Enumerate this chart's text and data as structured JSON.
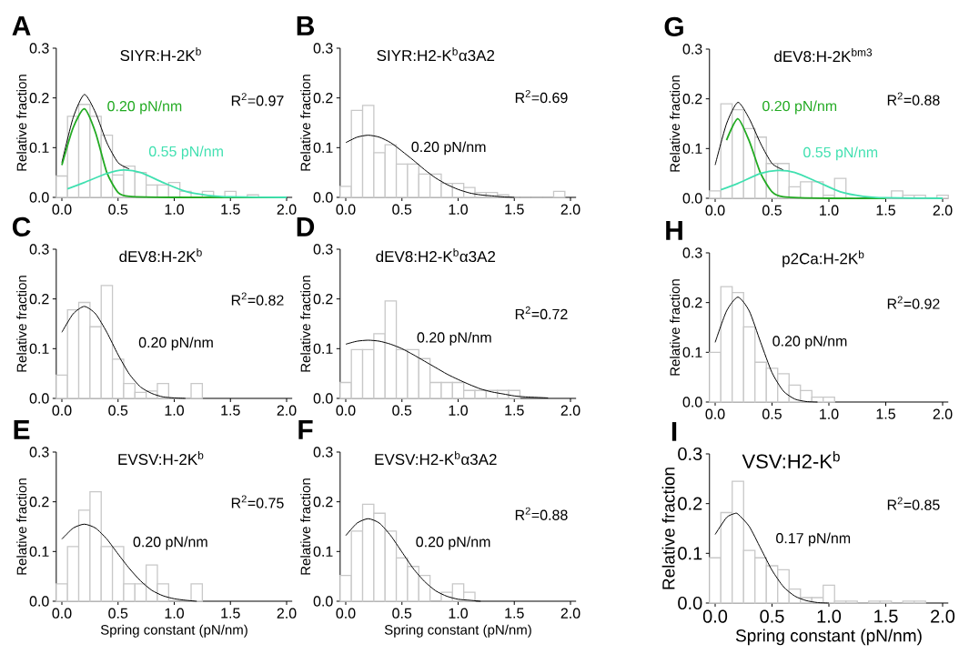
{
  "chart_data": [
    {
      "type": "histogram",
      "title": "SIYR:H-2K$^{b}$",
      "ylabel": "Relative fraction",
      "annotations": [
        "A",
        "R$^{2}$=0.97"
      ],
      "color": "#c8c8c8",
      "bins": [
        -0.05,
        0.05,
        0.15,
        0.25,
        0.35,
        0.45,
        0.55,
        0.65,
        0.75,
        0.85,
        0.95,
        1.05,
        1.15,
        1.25,
        1.35,
        1.45,
        1.55,
        1.65,
        1.75
      ],
      "values": [
        0.043,
        0.163,
        0.187,
        0.163,
        0.125,
        0.045,
        0.063,
        0.05,
        0.025,
        0.025,
        0.03,
        0.012,
        0,
        0.012,
        0,
        0.012,
        null,
        0.005
      ],
      "series": [
        {
          "type": "line",
          "color": "#000000",
          "x": [
            0,
            0.1,
            0.2,
            0.3,
            0.4,
            0.5,
            0.6
          ],
          "values": [
            0.07,
            0.16,
            0.207,
            0.17,
            0.11,
            0.07,
            0.057
          ]
        },
        {
          "type": "line",
          "name": "0.20 pN/nm",
          "color": "#22aa22",
          "x": [
            0,
            0.1,
            0.2,
            0.3,
            0.4,
            0.5,
            0.6,
            1.0,
            2.0
          ],
          "values": [
            0.065,
            0.14,
            0.178,
            0.13,
            0.05,
            0.01,
            0.002,
            0,
            0
          ]
        },
        {
          "type": "line",
          "name": "0.55 pN/nm",
          "color": "#40e0b0",
          "x": [
            0.05,
            0.2,
            0.4,
            0.55,
            0.7,
            0.9,
            1.1,
            1.3,
            1.5,
            2.0
          ],
          "values": [
            0.017,
            0.03,
            0.048,
            0.055,
            0.05,
            0.03,
            0.012,
            0.004,
            0.001,
            0
          ]
        }
      ],
      "xlim": [
        -0.05,
        2.05
      ],
      "ylim": [
        0,
        0.3
      ],
      "xticks": [
        {
          "value": 0,
          "label": "0.0"
        },
        {
          "value": 0.5,
          "label": "0.5"
        },
        {
          "value": 1,
          "label": "1.0"
        },
        {
          "value": 1.5,
          "label": "1.5"
        },
        {
          "value": 2,
          "label": "2.0"
        }
      ],
      "yticks": [
        {
          "value": 0,
          "label": "0.0"
        },
        {
          "value": 0.1,
          "label": "0.1"
        },
        {
          "value": 0.2,
          "label": "0.2"
        },
        {
          "value": 0.3,
          "label": "0.3"
        }
      ]
    },
    {
      "type": "histogram",
      "title": "SIYR:H2-K$^{b}$α3A2",
      "ylabel": "Relative fraction",
      "annotations": [
        "B",
        "R$^{2}$=0.69"
      ],
      "color": "#c8c8c8",
      "bins": [
        -0.05,
        0.05,
        0.15,
        0.25,
        0.35,
        0.45,
        0.55,
        0.65,
        0.75,
        0.85,
        0.95,
        1.05,
        1.15,
        1.25,
        1.35,
        1.45,
        1.55,
        1.65,
        1.75,
        1.85,
        1.95
      ],
      "values": [
        0.022,
        0.175,
        0.185,
        0.09,
        0.106,
        0.067,
        0.067,
        0.047,
        0.047,
        0.028,
        0.028,
        0.02,
        0.01,
        0.01,
        0.005,
        0,
        0,
        0,
        0,
        0.012
      ],
      "series": [
        {
          "type": "line",
          "name": "0.20 pN/nm",
          "color": "#000000",
          "x": [
            0,
            0.1,
            0.2,
            0.3,
            0.4,
            0.5,
            0.6,
            0.7,
            0.8,
            0.9,
            1.0,
            1.1,
            1.2,
            1.3,
            1.4,
            1.5
          ],
          "values": [
            0.11,
            0.121,
            0.125,
            0.121,
            0.11,
            0.093,
            0.075,
            0.056,
            0.039,
            0.026,
            0.016,
            0.009,
            0.005,
            0.003,
            0.001,
            0
          ]
        }
      ],
      "xlim": [
        -0.05,
        2.05
      ],
      "ylim": [
        0,
        0.3
      ],
      "xticks": [
        {
          "value": 0,
          "label": "0.0"
        },
        {
          "value": 0.5,
          "label": "0.5"
        },
        {
          "value": 1,
          "label": "1.0"
        },
        {
          "value": 1.5,
          "label": "1.5"
        },
        {
          "value": 2,
          "label": "2.0"
        }
      ],
      "yticks": [
        {
          "value": 0,
          "label": "0.0"
        },
        {
          "value": 0.1,
          "label": "0.1"
        },
        {
          "value": 0.2,
          "label": "0.2"
        },
        {
          "value": 0.3,
          "label": "0.3"
        }
      ]
    },
    {
      "type": "histogram",
      "title": "dEV8:H-2K$^{bm3}$",
      "ylabel": "Relative fraction",
      "annotations": [
        "G",
        "R$^{2}$=0.88"
      ],
      "color": "#c8c8c8",
      "bins": [
        -0.05,
        0.05,
        0.15,
        0.25,
        0.35,
        0.45,
        0.55,
        0.65,
        0.75,
        0.85,
        0.95,
        1.05,
        1.15,
        1.25,
        1.35,
        1.45,
        1.55,
        1.65,
        1.75,
        1.85,
        1.95,
        2.05
      ],
      "values": [
        0.015,
        0.19,
        0.178,
        0.14,
        0.123,
        0.07,
        0.07,
        0.023,
        0.033,
        0.033,
        0.006,
        0.04,
        0,
        null,
        null,
        0,
        0.015,
        0.006,
        0.006,
        0,
        0.006
      ],
      "series": [
        {
          "type": "line",
          "color": "#000000",
          "x": [
            0,
            0.1,
            0.2,
            0.3,
            0.4,
            0.5,
            0.6
          ],
          "values": [
            0.067,
            0.15,
            0.193,
            0.16,
            0.11,
            0.07,
            0.057
          ]
        },
        {
          "type": "line",
          "name": "0.20 pN/nm",
          "color": "#22aa22",
          "x": [
            0.1,
            0.2,
            0.3,
            0.4,
            0.5,
            0.6,
            1.0,
            1.5
          ],
          "values": [
            0.117,
            0.16,
            0.115,
            0.05,
            0.013,
            0.003,
            0,
            0
          ]
        },
        {
          "type": "line",
          "name": "0.55 pN/nm",
          "color": "#40e0b0",
          "x": [
            0.05,
            0.2,
            0.4,
            0.55,
            0.7,
            0.9,
            1.1,
            1.3,
            1.5,
            2.0
          ],
          "values": [
            0.017,
            0.03,
            0.05,
            0.056,
            0.052,
            0.033,
            0.013,
            0.004,
            0.001,
            0
          ]
        }
      ],
      "xlim": [
        -0.05,
        2.05
      ],
      "ylim": [
        0,
        0.3
      ],
      "xticks": [
        {
          "value": 0,
          "label": "0.0"
        },
        {
          "value": 0.5,
          "label": "0.5"
        },
        {
          "value": 1,
          "label": "1.0"
        },
        {
          "value": 1.5,
          "label": "1.5"
        },
        {
          "value": 2,
          "label": "2.0"
        }
      ],
      "yticks": [
        {
          "value": 0,
          "label": "0.0"
        },
        {
          "value": 0.1,
          "label": "0.1"
        },
        {
          "value": 0.2,
          "label": "0.2"
        },
        {
          "value": 0.3,
          "label": "0.3"
        }
      ]
    },
    {
      "type": "histogram",
      "title": "dEV8:H-2K$^{b}$",
      "ylabel": "Relative fraction",
      "annotations": [
        "C",
        "R$^{2}$=0.82"
      ],
      "color": "#c8c8c8",
      "bins": [
        -0.05,
        0.05,
        0.15,
        0.25,
        0.35,
        0.45,
        0.55,
        0.65,
        0.75,
        0.85,
        0.95,
        1.05,
        1.15,
        1.25
      ],
      "values": [
        0.047,
        0.178,
        0.193,
        0.144,
        0.227,
        0.079,
        0.03,
        0.012,
        0.015,
        0.03,
        0,
        0,
        0.03
      ],
      "series": [
        {
          "type": "line",
          "name": "0.20 pN/nm",
          "color": "#000000",
          "x": [
            0,
            0.1,
            0.2,
            0.3,
            0.4,
            0.5,
            0.6,
            0.7,
            0.8,
            0.9,
            1.0,
            1.1
          ],
          "values": [
            0.133,
            0.17,
            0.185,
            0.17,
            0.133,
            0.088,
            0.049,
            0.023,
            0.01,
            0.003,
            0.001,
            0
          ]
        }
      ],
      "xlim": [
        -0.05,
        2.05
      ],
      "ylim": [
        0,
        0.3
      ],
      "xticks": [
        {
          "value": 0,
          "label": "0.0"
        },
        {
          "value": 0.5,
          "label": "0.5"
        },
        {
          "value": 1,
          "label": "1.0"
        },
        {
          "value": 1.5,
          "label": "1.5"
        },
        {
          "value": 2,
          "label": "2.0"
        }
      ],
      "yticks": [
        {
          "value": 0,
          "label": "0.0"
        },
        {
          "value": 0.1,
          "label": "0.1"
        },
        {
          "value": 0.2,
          "label": "0.2"
        },
        {
          "value": 0.3,
          "label": "0.3"
        }
      ]
    },
    {
      "type": "histogram",
      "title": "dEV8:H2-K$^{b}$α3A2",
      "ylabel": "Relative fraction",
      "annotations": [
        "D",
        "R$^{2}$=0.72"
      ],
      "color": "#c8c8c8",
      "bins": [
        -0.05,
        0.05,
        0.15,
        0.25,
        0.35,
        0.45,
        0.55,
        0.65,
        0.75,
        0.85,
        0.95,
        1.05,
        1.15,
        1.25,
        1.35,
        1.45,
        1.55
      ],
      "values": [
        0.032,
        0.098,
        0.098,
        0.13,
        0.196,
        0.098,
        0.098,
        0.08,
        0.032,
        0.032,
        0.032,
        0.016,
        0.016,
        0.016,
        0.016,
        0.016
      ],
      "series": [
        {
          "type": "line",
          "name": "0.20 pN/nm",
          "color": "#000000",
          "x": [
            0,
            0.1,
            0.2,
            0.3,
            0.4,
            0.5,
            0.6,
            0.7,
            0.8,
            0.9,
            1.0,
            1.1,
            1.2,
            1.3,
            1.4,
            1.5,
            1.6,
            1.7,
            1.8
          ],
          "values": [
            0.109,
            0.115,
            0.117,
            0.115,
            0.109,
            0.1,
            0.088,
            0.075,
            0.062,
            0.049,
            0.038,
            0.028,
            0.019,
            0.013,
            0.009,
            0.005,
            0.003,
            0.002,
            0.001
          ]
        }
      ],
      "xlim": [
        -0.05,
        2.05
      ],
      "ylim": [
        0,
        0.3
      ],
      "xticks": [
        {
          "value": 0,
          "label": "0.0"
        },
        {
          "value": 0.5,
          "label": "0.5"
        },
        {
          "value": 1,
          "label": "1.0"
        },
        {
          "value": 1.5,
          "label": "1.5"
        },
        {
          "value": 2,
          "label": "2.0"
        }
      ],
      "yticks": [
        {
          "value": 0,
          "label": "0.0"
        },
        {
          "value": 0.1,
          "label": "0.1"
        },
        {
          "value": 0.2,
          "label": "0.2"
        },
        {
          "value": 0.3,
          "label": "0.3"
        }
      ]
    },
    {
      "type": "histogram",
      "title": "p2Ca:H-2K$^{b}$",
      "ylabel": "Relative fraction",
      "annotations": [
        "H",
        "R$^{2}$=0.92"
      ],
      "color": "#c8c8c8",
      "bins": [
        -0.05,
        0.05,
        0.15,
        0.25,
        0.35,
        0.45,
        0.55,
        0.65,
        0.75,
        0.85,
        0.95,
        1.05
      ],
      "values": [
        0.1,
        0.232,
        0.22,
        0.151,
        0.08,
        0.068,
        0.057,
        0.034,
        0.023,
        0.01,
        0.01
      ],
      "series": [
        {
          "type": "line",
          "name": "0.20 pN/nm",
          "color": "#000000",
          "x": [
            0,
            0.1,
            0.2,
            0.3,
            0.4,
            0.5,
            0.6,
            0.7,
            0.8,
            0.9
          ],
          "values": [
            0.12,
            0.183,
            0.211,
            0.183,
            0.12,
            0.059,
            0.022,
            0.006,
            0.001,
            0
          ]
        }
      ],
      "xlim": [
        -0.05,
        2.05
      ],
      "ylim": [
        0,
        0.3
      ],
      "xticks": [
        {
          "value": 0,
          "label": "0.0"
        },
        {
          "value": 0.5,
          "label": "0.5"
        },
        {
          "value": 1,
          "label": "1.0"
        },
        {
          "value": 1.5,
          "label": "1.5"
        },
        {
          "value": 2,
          "label": "2.0"
        }
      ],
      "yticks": [
        {
          "value": 0,
          "label": "0.0"
        },
        {
          "value": 0.1,
          "label": "0.1"
        },
        {
          "value": 0.2,
          "label": "0.2"
        },
        {
          "value": 0.3,
          "label": "0.3"
        }
      ]
    },
    {
      "type": "histogram",
      "title": "EVSV:H-2K$^{b}$",
      "xlabel": "Spring constant (pN/nm)",
      "ylabel": "Relative fraction",
      "annotations": [
        "E",
        "R$^{2}$=0.75"
      ],
      "color": "#c8c8c8",
      "bins": [
        -0.05,
        0.05,
        0.15,
        0.25,
        0.35,
        0.45,
        0.55,
        0.65,
        0.75,
        0.85,
        0.95,
        1.05,
        1.15,
        1.25
      ],
      "values": [
        0.035,
        0.11,
        0.183,
        0.22,
        0.11,
        0.11,
        0.035,
        0.035,
        0.073,
        0.035,
        0,
        0,
        0.035
      ],
      "series": [
        {
          "type": "line",
          "name": "0.20 pN/nm",
          "color": "#000000",
          "x": [
            0,
            0.1,
            0.2,
            0.3,
            0.4,
            0.5,
            0.6,
            0.7,
            0.8,
            0.9,
            1.0,
            1.1,
            1.2
          ],
          "values": [
            0.125,
            0.147,
            0.155,
            0.147,
            0.125,
            0.095,
            0.066,
            0.041,
            0.022,
            0.011,
            0.005,
            0.002,
            0
          ]
        }
      ],
      "xlim": [
        -0.05,
        2.05
      ],
      "ylim": [
        0,
        0.3
      ],
      "xticks": [
        {
          "value": 0,
          "label": "0.0"
        },
        {
          "value": 0.5,
          "label": "0.5"
        },
        {
          "value": 1,
          "label": "1.0"
        },
        {
          "value": 1.5,
          "label": "1.5"
        },
        {
          "value": 2,
          "label": "2.0"
        }
      ],
      "yticks": [
        {
          "value": 0,
          "label": "0.0"
        },
        {
          "value": 0.1,
          "label": "0.1"
        },
        {
          "value": 0.2,
          "label": "0.2"
        },
        {
          "value": 0.3,
          "label": "0.3"
        }
      ]
    },
    {
      "type": "histogram",
      "title": "EVSV:H2-K$^{b}$α3A2",
      "xlabel": "Spring constant (pN/nm)",
      "ylabel": "Relative fraction",
      "annotations": [
        "F",
        "R$^{2}$=0.88"
      ],
      "color": "#c8c8c8",
      "bins": [
        -0.05,
        0.05,
        0.15,
        0.25,
        0.35,
        0.45,
        0.55,
        0.65,
        0.75,
        0.85,
        0.95,
        1.05,
        1.15
      ],
      "values": [
        0.052,
        0.141,
        0.195,
        0.177,
        0.141,
        0.087,
        0.07,
        0.052,
        0,
        0.018,
        0.035,
        0.018
      ],
      "series": [
        {
          "type": "line",
          "name": "0.20 pN/nm",
          "color": "#000000",
          "x": [
            0,
            0.1,
            0.2,
            0.3,
            0.4,
            0.5,
            0.6,
            0.7,
            0.8,
            0.9,
            1.0,
            1.1,
            1.2
          ],
          "values": [
            0.132,
            0.157,
            0.166,
            0.157,
            0.132,
            0.099,
            0.066,
            0.04,
            0.021,
            0.01,
            0.004,
            0.002,
            0
          ]
        }
      ],
      "xlim": [
        -0.05,
        2.05
      ],
      "ylim": [
        0,
        0.3
      ],
      "xticks": [
        {
          "value": 0,
          "label": "0.0"
        },
        {
          "value": 0.5,
          "label": "0.5"
        },
        {
          "value": 1,
          "label": "1.0"
        },
        {
          "value": 1.5,
          "label": "1.5"
        },
        {
          "value": 2,
          "label": "2.0"
        }
      ],
      "yticks": [
        {
          "value": 0,
          "label": "0.0"
        },
        {
          "value": 0.1,
          "label": "0.1"
        },
        {
          "value": 0.2,
          "label": "0.2"
        },
        {
          "value": 0.3,
          "label": "0.3"
        }
      ]
    },
    {
      "type": "histogram",
      "title": "VSV:H2-K$^{b}$",
      "xlabel": "Spring constant (pN/nm)",
      "ylabel": "Relative fraction",
      "annotations": [
        "I",
        "R$^{2}$=0.85"
      ],
      "color": "#c8c8c8",
      "bins": [
        -0.05,
        0.05,
        0.15,
        0.25,
        0.35,
        0.45,
        0.55,
        0.65,
        0.75,
        0.85,
        0.95,
        1.05,
        1.15,
        1.25,
        1.35,
        1.45,
        1.55,
        1.65,
        1.75,
        1.85
      ],
      "values": [
        0.091,
        0.182,
        0.245,
        0.106,
        0.091,
        0.075,
        0.067,
        0.028,
        0.011,
        0.011,
        0.036,
        0.004,
        0.004,
        0,
        0.004,
        0.004,
        0,
        0.004,
        0.004
      ],
      "series": [
        {
          "type": "line",
          "name": "0.17 pN/nm",
          "color": "#000000",
          "x": [
            0,
            0.1,
            0.17,
            0.2,
            0.3,
            0.4,
            0.5,
            0.6,
            0.7,
            0.8,
            0.9,
            1.0
          ],
          "values": [
            0.138,
            0.172,
            0.18,
            0.179,
            0.154,
            0.11,
            0.066,
            0.033,
            0.014,
            0.005,
            0.001,
            0
          ]
        }
      ],
      "xlim": [
        -0.05,
        2.05
      ],
      "ylim": [
        0,
        0.3
      ],
      "xticks": [
        {
          "value": 0,
          "label": "0.0"
        },
        {
          "value": 0.5,
          "label": "0.5"
        },
        {
          "value": 1,
          "label": "1.0"
        },
        {
          "value": 1.5,
          "label": "1.5"
        },
        {
          "value": 2,
          "label": "2.0"
        }
      ],
      "yticks": [
        {
          "value": 0,
          "label": "0.0"
        },
        {
          "value": 0.1,
          "label": "0.1"
        },
        {
          "value": 0.2,
          "label": "0.2"
        },
        {
          "value": 0.3,
          "label": "0.3"
        }
      ]
    }
  ]
}
